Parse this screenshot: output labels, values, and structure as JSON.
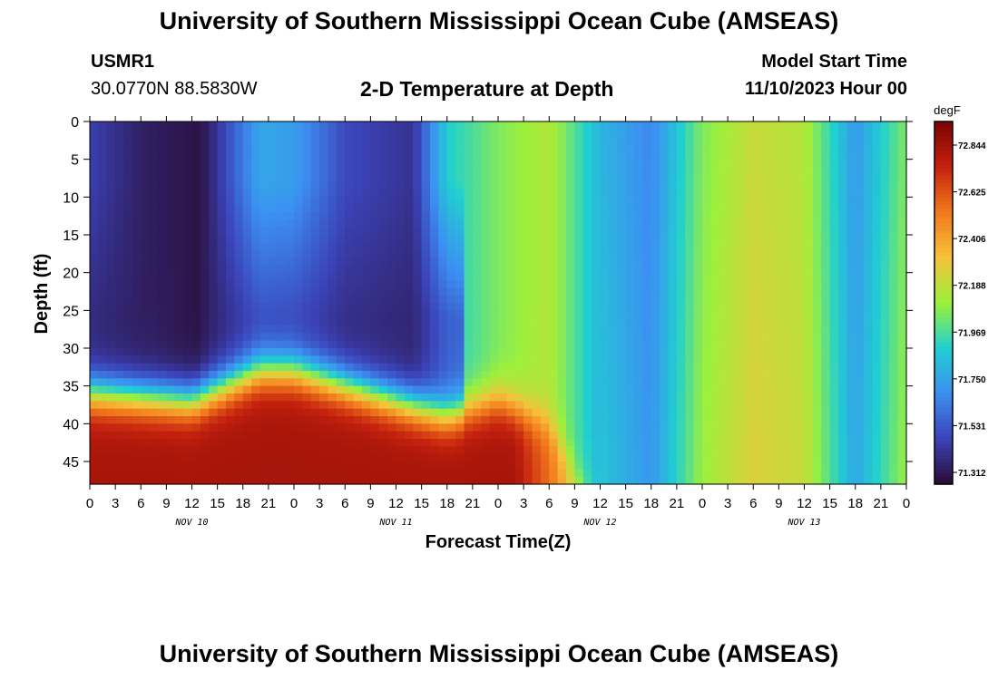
{
  "header": {
    "title": "University of Southern Mississippi Ocean Cube (AMSEAS)",
    "station_id": "USMR1",
    "station_coords": "30.0770N  88.5830W",
    "chart_subtitle": "2-D Temperature at Depth",
    "model_start_label": "Model Start Time",
    "model_start_value": "11/10/2023 Hour 00"
  },
  "footer": {
    "title_repeat": "University of Southern Mississippi Ocean Cube (AMSEAS)"
  },
  "colors": {
    "background": "#ffffff",
    "palette": [
      "#2a0b33",
      "#3b43b8",
      "#3c8ff2",
      "#20d0d0",
      "#9df03c",
      "#f5c23a",
      "#f2791c",
      "#c4210e",
      "#7a0403"
    ]
  },
  "chart_data": {
    "type": "heatmap",
    "title": "2-D Temperature at Depth",
    "xlabel": "Forecast Time(Z)",
    "ylabel": "Depth (ft)",
    "x_tick_labels": [
      "0",
      "3",
      "6",
      "9",
      "12",
      "15",
      "18",
      "21",
      "0",
      "3",
      "6",
      "9",
      "12",
      "15",
      "18",
      "21",
      "0",
      "3",
      "6",
      "9",
      "12",
      "15",
      "18",
      "21",
      "0",
      "3",
      "6",
      "9",
      "12",
      "15",
      "18",
      "21",
      "0"
    ],
    "x_range_hours": [
      0,
      96
    ],
    "day_labels": [
      {
        "label": "NOV 10",
        "hour": 12
      },
      {
        "label": "NOV 11",
        "hour": 36
      },
      {
        "label": "NOV 12",
        "hour": 60
      },
      {
        "label": "NOV 13",
        "hour": 84
      }
    ],
    "y_ticks": [
      0,
      5,
      10,
      15,
      20,
      25,
      30,
      35,
      40,
      45
    ],
    "y_range_ft": [
      0,
      48
    ],
    "y_inverted": true,
    "colorbar": {
      "unit": "degF",
      "ticks": [
        "72.844",
        "72.625",
        "72.406",
        "72.188",
        "71.969",
        "71.750",
        "71.531",
        "71.312"
      ],
      "min": 71.25,
      "max": 72.95
    },
    "surface_temperature_by_hour": [
      [
        0,
        71.45
      ],
      [
        6,
        71.33
      ],
      [
        13,
        71.28
      ],
      [
        20,
        71.75
      ],
      [
        24,
        71.72
      ],
      [
        30,
        71.48
      ],
      [
        38,
        71.4
      ],
      [
        42,
        71.88
      ],
      [
        48,
        72.05
      ],
      [
        54,
        72.15
      ],
      [
        60,
        71.8
      ],
      [
        66,
        71.65
      ],
      [
        72,
        72.05
      ],
      [
        78,
        72.2
      ],
      [
        84,
        72.15
      ],
      [
        90,
        71.7
      ],
      [
        96,
        72.05
      ]
    ],
    "warm_layer_top_ft_by_hour": [
      [
        0,
        36
      ],
      [
        12,
        37
      ],
      [
        20,
        33
      ],
      [
        24,
        33
      ],
      [
        30,
        35
      ],
      [
        36,
        37
      ],
      [
        42,
        39
      ],
      [
        48,
        37
      ],
      [
        54,
        40
      ],
      [
        58,
        48
      ]
    ],
    "bottom_temperature": 72.82,
    "note": "Cold blue/purple water in upper layer during Nov 10-11, warm red bottom layer below ~35 ft until Nov 12 09Z; vertically mixed oscillating green/orange bands afterwards."
  }
}
